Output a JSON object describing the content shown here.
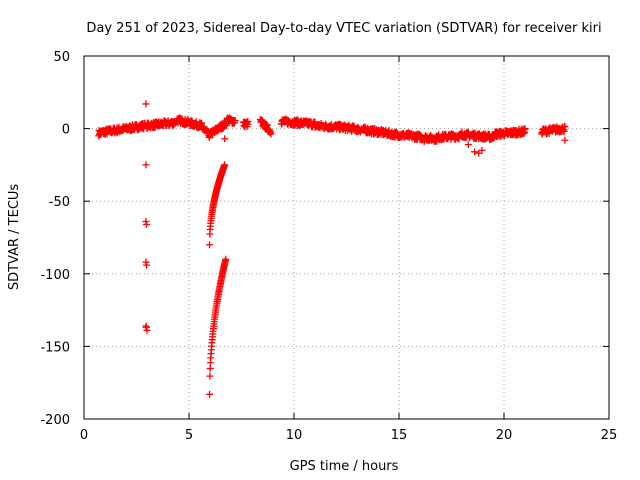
{
  "chart_data": {
    "type": "scatter",
    "title": "Day 251 of 2023, Sidereal Day-to-day VTEC variation (SDTVAR) for receiver kiri",
    "xlabel": "GPS time / hours",
    "ylabel": "SDTVAR / TECUs",
    "xlim": [
      0,
      25
    ],
    "ylim": [
      -200,
      50
    ],
    "xticks": [
      0,
      5,
      10,
      15,
      20,
      25
    ],
    "yticks": [
      -200,
      -150,
      -100,
      -50,
      0,
      50
    ],
    "grid": true,
    "marker": "+",
    "color": "#ff0000",
    "segments": [
      {
        "x0": 0.7,
        "x1": 2.9,
        "y0": -3,
        "y1": 2
      },
      {
        "x0": 3.0,
        "x1": 4.3,
        "y0": 2,
        "y1": 4
      },
      {
        "x0": 4.4,
        "x1": 5.6,
        "y0": 6,
        "y1": 2
      },
      {
        "x0": 5.6,
        "x1": 6.0,
        "y0": 1,
        "y1": -5
      },
      {
        "x0": 6.0,
        "x1": 6.8,
        "y0": -4,
        "y1": 4
      },
      {
        "x0": 6.8,
        "x1": 7.2,
        "y0": 6,
        "y1": 5
      },
      {
        "x0": 7.6,
        "x1": 7.8,
        "y0": 3,
        "y1": 3
      },
      {
        "x0": 8.4,
        "x1": 8.9,
        "y0": 5,
        "y1": -2
      },
      {
        "x0": 9.4,
        "x1": 11.0,
        "y0": 5,
        "y1": 3
      },
      {
        "x0": 11.0,
        "x1": 12.2,
        "y0": 2,
        "y1": 1
      },
      {
        "x0": 12.2,
        "x1": 13.4,
        "y0": 1,
        "y1": -1
      },
      {
        "x0": 13.4,
        "x1": 14.8,
        "y0": -1,
        "y1": -4
      },
      {
        "x0": 14.8,
        "x1": 16.8,
        "y0": -4,
        "y1": -7
      },
      {
        "x0": 16.8,
        "x1": 18.0,
        "y0": -6,
        "y1": -5
      },
      {
        "x0": 18.0,
        "x1": 19.5,
        "y0": -4,
        "y1": -6
      },
      {
        "x0": 19.5,
        "x1": 21.0,
        "y0": -4,
        "y1": -2
      },
      {
        "x0": 21.8,
        "x1": 22.9,
        "y0": -2,
        "y1": 0
      }
    ],
    "points": [
      {
        "x": 2.95,
        "y": 17
      },
      {
        "x": 2.95,
        "y": -25
      },
      {
        "x": 2.95,
        "y": -64
      },
      {
        "x": 2.98,
        "y": -66
      },
      {
        "x": 2.95,
        "y": -92
      },
      {
        "x": 2.98,
        "y": -94
      },
      {
        "x": 2.95,
        "y": -136
      },
      {
        "x": 2.97,
        "y": -137
      },
      {
        "x": 3.0,
        "y": -139
      },
      {
        "x": 6.7,
        "y": -7
      },
      {
        "x": 7.8,
        "y": 5
      },
      {
        "x": 18.6,
        "y": -16
      },
      {
        "x": 18.8,
        "y": -17
      },
      {
        "x": 18.95,
        "y": -15
      },
      {
        "x": 18.3,
        "y": -11
      },
      {
        "x": 22.9,
        "y": -8
      },
      {
        "x": 13.8,
        "y": -3
      },
      {
        "x": 16.2,
        "y": -9
      },
      {
        "x": 20.2,
        "y": -4
      },
      {
        "x": 0.8,
        "y": -4
      }
    ],
    "curves": [
      {
        "x0": 5.98,
        "x1": 6.7,
        "y0": -80,
        "y1": -25
      },
      {
        "x0": 5.98,
        "x1": 6.75,
        "y0": -183,
        "y1": -90
      }
    ]
  }
}
